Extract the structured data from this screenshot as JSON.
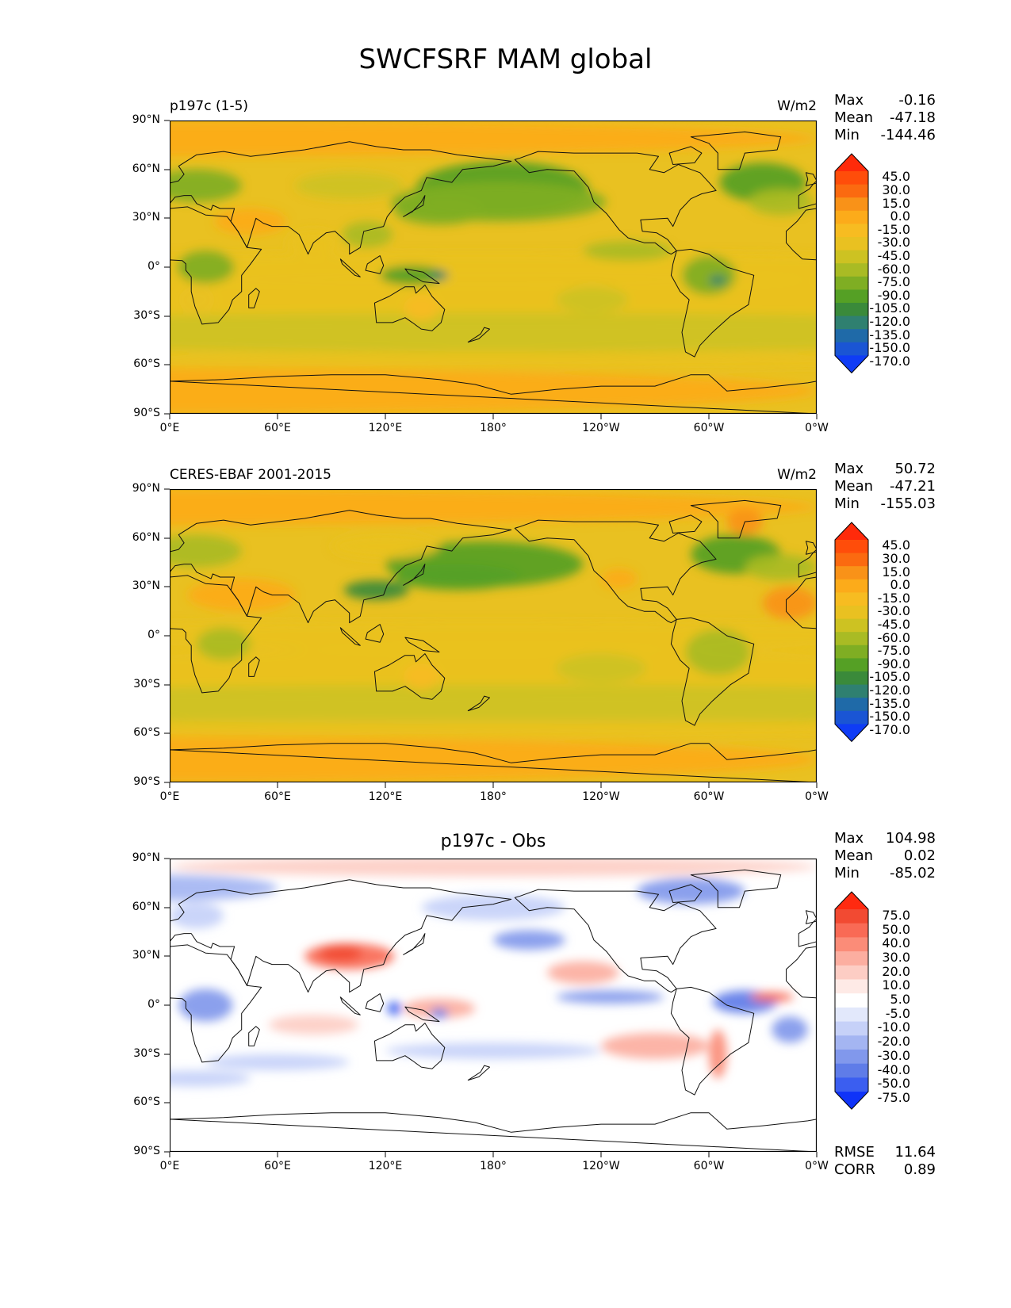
{
  "figure_title": "SWCFSRF MAM global",
  "lat_ticks": [
    "90°N",
    "60°N",
    "30°N",
    "0°",
    "30°S",
    "60°S",
    "90°S"
  ],
  "lon_ticks": [
    "0°E",
    "60°E",
    "120°E",
    "180°",
    "120°W",
    "60°W",
    "0°W"
  ],
  "panels": [
    {
      "id": "model",
      "title": "p197c (1-5)",
      "title_position": "left",
      "units": "W/m2",
      "stats": [
        {
          "label": "Max",
          "value": "-0.16"
        },
        {
          "label": "Mean",
          "value": "-47.18"
        },
        {
          "label": "Min",
          "value": "-144.46"
        }
      ],
      "colorbar_labels": [
        "45.0",
        "30.0",
        "15.0",
        "0.0",
        "-15.0",
        "-30.0",
        "-45.0",
        "-60.0",
        "-75.0",
        "-90.0",
        "-105.0",
        "-120.0",
        "-135.0",
        "-150.0",
        "-170.0"
      ],
      "colorbar_colors": [
        "#ff2a0a",
        "#ff4d0a",
        "#fb6a10",
        "#f99218",
        "#fcab1a",
        "#f7bc21",
        "#e9c121",
        "#cdc222",
        "#a9bb24",
        "#7fae23",
        "#55a025",
        "#3a8a3a",
        "#2f8070",
        "#1f6aa8",
        "#1a55d4",
        "#0f3cf5"
      ]
    },
    {
      "id": "obs",
      "title": "CERES-EBAF 2001-2015",
      "title_position": "left",
      "units": "W/m2",
      "stats": [
        {
          "label": "Max",
          "value": "50.72"
        },
        {
          "label": "Mean",
          "value": "-47.21"
        },
        {
          "label": "Min",
          "value": "-155.03"
        }
      ],
      "colorbar_labels": [
        "45.0",
        "30.0",
        "15.0",
        "0.0",
        "-15.0",
        "-30.0",
        "-45.0",
        "-60.0",
        "-75.0",
        "-90.0",
        "-105.0",
        "-120.0",
        "-135.0",
        "-150.0",
        "-170.0"
      ],
      "colorbar_colors": [
        "#ff2a0a",
        "#ff4d0a",
        "#fb6a10",
        "#f99218",
        "#fcab1a",
        "#f7bc21",
        "#e9c121",
        "#cdc222",
        "#a9bb24",
        "#7fae23",
        "#55a025",
        "#3a8a3a",
        "#2f8070",
        "#1f6aa8",
        "#1a55d4",
        "#0f3cf5"
      ]
    },
    {
      "id": "diff",
      "title": "p197c - Obs",
      "title_position": "center",
      "units": "",
      "stats": [
        {
          "label": "Max",
          "value": "104.98"
        },
        {
          "label": "Mean",
          "value": "0.02"
        },
        {
          "label": "Min",
          "value": "-85.02"
        }
      ],
      "bottom_stats": [
        {
          "label": "RMSE",
          "value": "11.64"
        },
        {
          "label": "CORR",
          "value": "0.89"
        }
      ],
      "colorbar_labels": [
        "75.0",
        "50.0",
        "40.0",
        "30.0",
        "20.0",
        "10.0",
        "5.0",
        "-5.0",
        "-10.0",
        "-20.0",
        "-30.0",
        "-40.0",
        "-50.0",
        "-75.0"
      ],
      "colorbar_colors": [
        "#ff2a10",
        "#f24a32",
        "#f96a55",
        "#fb8c78",
        "#fcaea0",
        "#fdcdc4",
        "#feeae6",
        "#ffffff",
        "#e2e8fb",
        "#c6d1f8",
        "#a4b5f2",
        "#8198ec",
        "#5f7ce8",
        "#3b5ef0",
        "#0f33f8"
      ]
    }
  ]
}
